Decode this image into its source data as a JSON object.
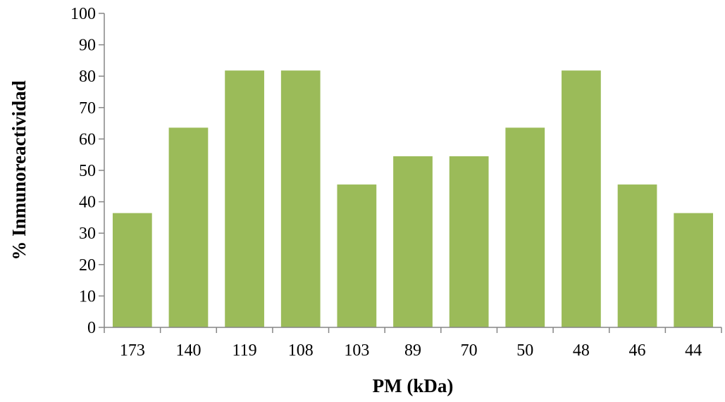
{
  "chart_data": {
    "type": "bar",
    "title": "",
    "xlabel": "PM (kDa)",
    "ylabel": "% Inmunoreactividad",
    "categories": [
      "173",
      "140",
      "119",
      "108",
      "103",
      "89",
      "70",
      "50",
      "48",
      "46",
      "44"
    ],
    "values": [
      36.4,
      63.6,
      81.8,
      81.8,
      45.5,
      54.5,
      54.5,
      63.6,
      81.8,
      45.5,
      36.4
    ],
    "ylim": [
      0,
      100
    ],
    "yticks": [
      0,
      10,
      20,
      30,
      40,
      50,
      60,
      70,
      80,
      90,
      100
    ],
    "grid": false,
    "bar_color": "#9BBB59"
  }
}
